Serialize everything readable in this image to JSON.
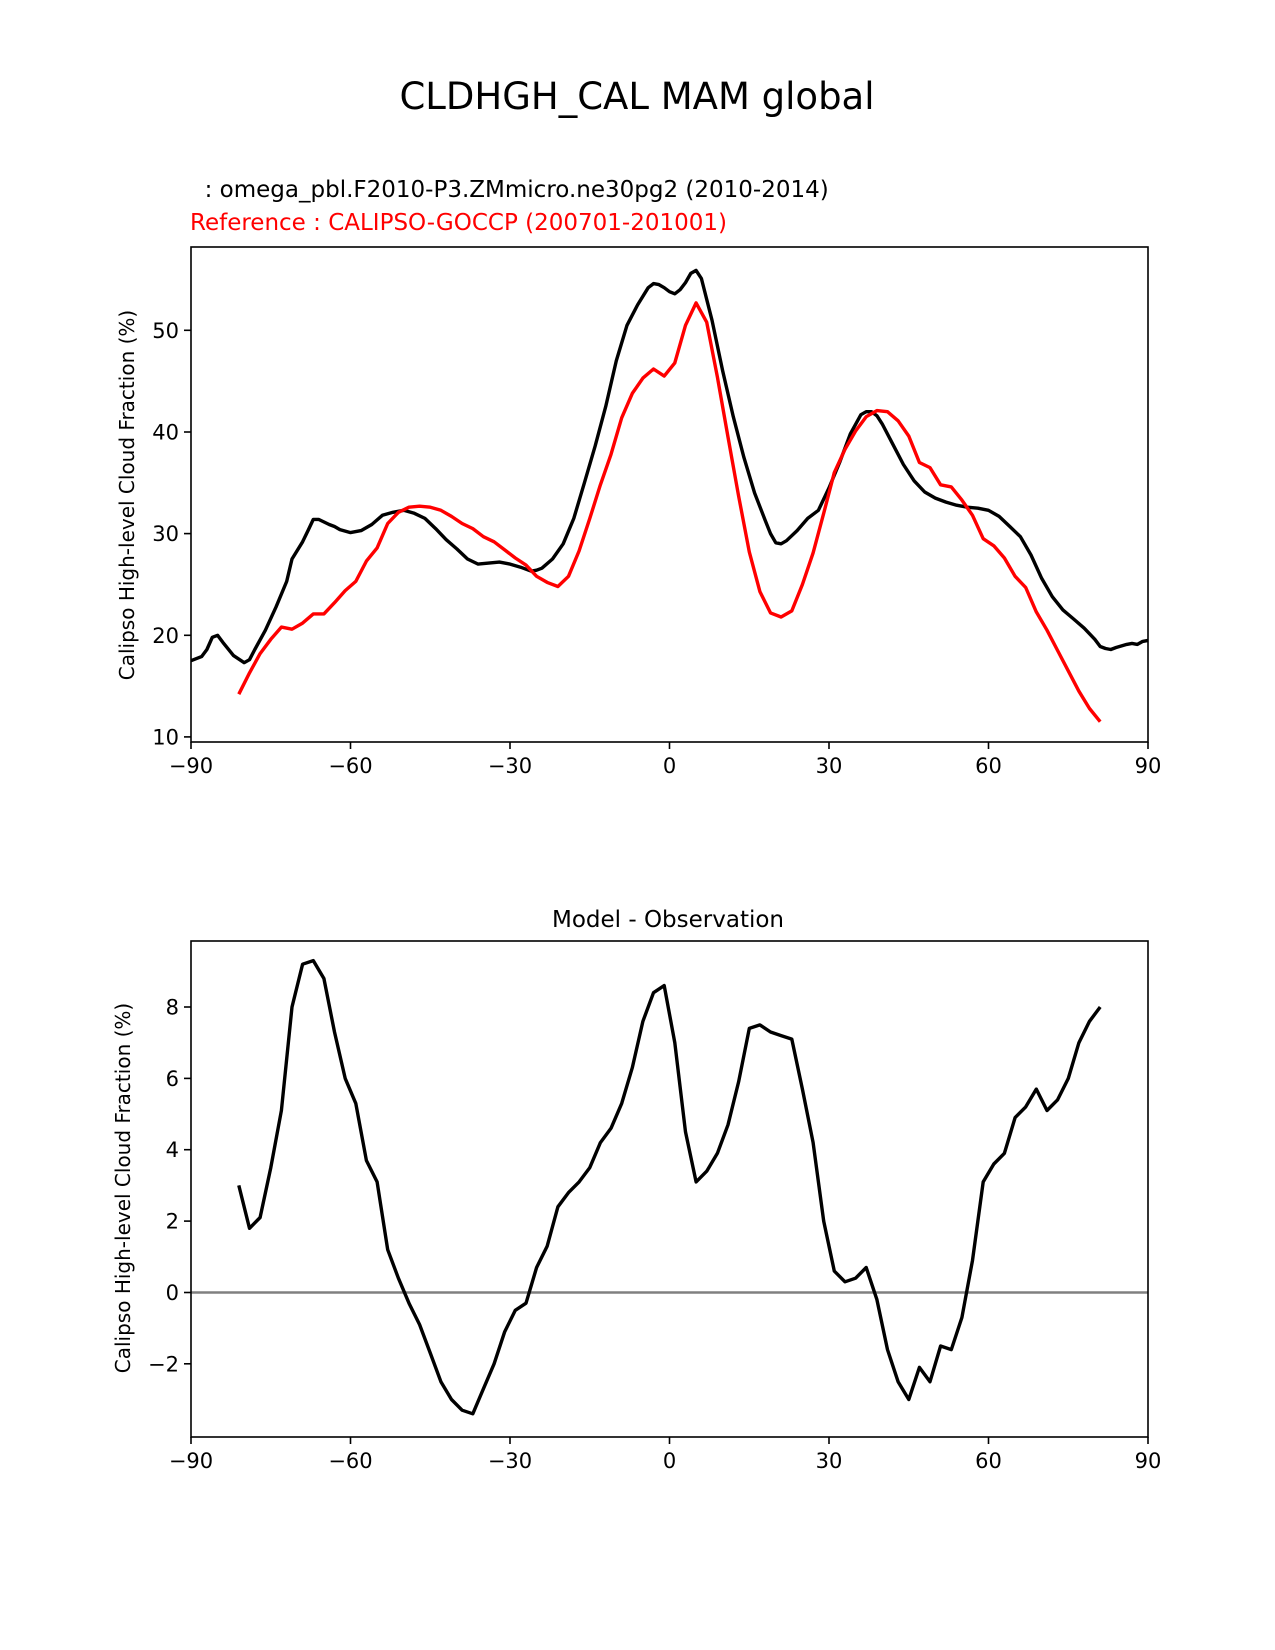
{
  "figure": {
    "title": "CLDHGH_CAL MAM global",
    "test_label": "  : omega_pbl.F2010-P3.ZMmicro.ne30pg2 (2010-2014)",
    "ref_label": "Reference : CALIPSO-GOCCP (200701-201001)",
    "colors": {
      "test": "#000000",
      "reference": "#ff0000",
      "zero_line": "#808080"
    }
  },
  "chart_data": [
    {
      "type": "line",
      "title": "",
      "xlabel": "",
      "ylabel": "Calipso High-level Cloud Fraction (%)",
      "xlim": [
        -90,
        90
      ],
      "ylim": [
        9.5,
        58.2
      ],
      "xticks": [
        -90,
        -60,
        -30,
        0,
        30,
        60,
        90
      ],
      "xtick_labels": [
        "−90",
        "−60",
        "−30",
        "0",
        "30",
        "60",
        "90"
      ],
      "yticks": [
        10,
        20,
        30,
        40,
        50
      ],
      "ytick_labels": [
        "10",
        "20",
        "30",
        "40",
        "50"
      ],
      "series": [
        {
          "name": "test",
          "color": "#000000",
          "x": [
            -90,
            -88,
            -87,
            -86,
            -85,
            -84,
            -82,
            -80,
            -79,
            -78,
            -76,
            -74,
            -72,
            -71,
            -69,
            -68,
            -67,
            -66,
            -64,
            -63,
            -62,
            -60,
            -58,
            -56,
            -54,
            -52,
            -50,
            -48,
            -46,
            -44,
            -42,
            -40,
            -38,
            -36,
            -34,
            -32,
            -30,
            -28,
            -26,
            -25,
            -24,
            -22,
            -20,
            -18,
            -16,
            -14,
            -12,
            -10,
            -8,
            -6,
            -4,
            -3,
            -2,
            -1,
            0,
            1,
            2,
            3,
            4,
            5,
            6,
            8,
            10,
            12,
            14,
            16,
            18,
            19,
            20,
            21,
            22,
            24,
            26,
            28,
            30,
            32,
            34,
            36,
            37,
            38,
            39,
            40,
            42,
            44,
            46,
            48,
            50,
            52,
            54,
            56,
            58,
            60,
            62,
            64,
            66,
            68,
            70,
            72,
            74,
            76,
            78,
            80,
            81,
            82,
            83,
            84,
            86,
            87,
            88,
            89,
            90
          ],
          "y": [
            17.5,
            17.9,
            18.6,
            19.8,
            20.0,
            19.3,
            18.0,
            17.3,
            17.6,
            18.6,
            20.5,
            22.8,
            25.3,
            27.5,
            29.2,
            30.3,
            31.4,
            31.4,
            30.9,
            30.7,
            30.4,
            30.1,
            30.3,
            30.9,
            31.8,
            32.1,
            32.3,
            32.0,
            31.5,
            30.5,
            29.4,
            28.5,
            27.5,
            27.0,
            27.1,
            27.2,
            27.0,
            26.7,
            26.3,
            26.4,
            26.6,
            27.5,
            29.0,
            31.5,
            35.0,
            38.6,
            42.5,
            47.0,
            50.5,
            52.5,
            54.2,
            54.6,
            54.5,
            54.2,
            53.8,
            53.6,
            54.0,
            54.7,
            55.6,
            55.9,
            55.1,
            51.0,
            46.0,
            41.5,
            37.5,
            34.0,
            31.3,
            30.0,
            29.1,
            29.0,
            29.3,
            30.3,
            31.5,
            32.3,
            34.5,
            37.0,
            39.8,
            41.7,
            42.0,
            42.0,
            41.6,
            40.8,
            38.8,
            36.8,
            35.2,
            34.1,
            33.5,
            33.1,
            32.8,
            32.6,
            32.5,
            32.3,
            31.7,
            30.7,
            29.7,
            27.9,
            25.6,
            23.8,
            22.5,
            21.6,
            20.7,
            19.6,
            18.9,
            18.7,
            18.6,
            18.8,
            19.1,
            19.2,
            19.1,
            19.4,
            19.5
          ]
        },
        {
          "name": "reference",
          "color": "#ff0000",
          "x": [
            -81,
            -79,
            -77,
            -75,
            -73,
            -71,
            -69,
            -67,
            -65,
            -63,
            -61,
            -59,
            -57,
            -55,
            -53,
            -51,
            -49,
            -47,
            -45,
            -43,
            -41,
            -39,
            -37,
            -35,
            -33,
            -31,
            -29,
            -27,
            -25,
            -23,
            -21,
            -19,
            -17,
            -15,
            -13,
            -11,
            -9,
            -7,
            -5,
            -3,
            -1,
            1,
            3,
            5,
            7,
            9,
            11,
            13,
            15,
            17,
            19,
            21,
            23,
            25,
            27,
            29,
            31,
            33,
            35,
            37,
            39,
            41,
            43,
            45,
            47,
            49,
            51,
            53,
            55,
            57,
            59,
            61,
            63,
            65,
            67,
            69,
            71,
            73,
            75,
            77,
            79,
            81
          ],
          "y": [
            14.2,
            16.3,
            18.2,
            19.6,
            20.8,
            20.6,
            21.2,
            22.1,
            22.1,
            23.2,
            24.4,
            25.3,
            27.3,
            28.6,
            31.0,
            32.1,
            32.6,
            32.7,
            32.6,
            32.3,
            31.7,
            31.0,
            30.5,
            29.7,
            29.2,
            28.4,
            27.6,
            26.9,
            25.8,
            25.2,
            24.8,
            25.8,
            28.3,
            31.5,
            34.8,
            37.8,
            41.4,
            43.8,
            45.3,
            46.2,
            45.5,
            46.8,
            50.5,
            52.7,
            50.8,
            45.4,
            39.5,
            33.7,
            28.2,
            24.3,
            22.2,
            21.8,
            22.4,
            25.0,
            28.1,
            32.0,
            36.0,
            38.3,
            40.1,
            41.5,
            42.1,
            42.0,
            41.1,
            39.6,
            37.0,
            36.5,
            34.8,
            34.6,
            33.3,
            31.8,
            29.5,
            28.8,
            27.6,
            25.8,
            24.7,
            22.3,
            20.5,
            18.5,
            16.5,
            14.5,
            12.8,
            11.5
          ]
        }
      ]
    },
    {
      "type": "line",
      "title": "Model - Observation",
      "xlabel": "",
      "ylabel": "Calipso High-level Cloud Fraction (%)",
      "xlim": [
        -90,
        90
      ],
      "ylim": [
        -4.05,
        9.85
      ],
      "xticks": [
        -90,
        -60,
        -30,
        0,
        30,
        60,
        90
      ],
      "xtick_labels": [
        "−90",
        "−60",
        "−30",
        "0",
        "30",
        "60",
        "90"
      ],
      "yticks": [
        -2,
        0,
        2,
        4,
        6,
        8
      ],
      "ytick_labels": [
        "−2",
        "0",
        "2",
        "4",
        "6",
        "8"
      ],
      "zero_line": 0,
      "series": [
        {
          "name": "model minus observation",
          "color": "#000000",
          "x": [
            -81,
            -79,
            -77,
            -75,
            -73,
            -71,
            -69,
            -67,
            -65,
            -63,
            -61,
            -59,
            -57,
            -55,
            -53,
            -51,
            -49,
            -47,
            -45,
            -43,
            -41,
            -39,
            -37,
            -35,
            -33,
            -31,
            -29,
            -27,
            -25,
            -23,
            -21,
            -19,
            -17,
            -15,
            -13,
            -11,
            -9,
            -7,
            -5,
            -3,
            -1,
            1,
            3,
            5,
            7,
            9,
            11,
            13,
            15,
            17,
            19,
            21,
            23,
            25,
            27,
            29,
            31,
            33,
            35,
            37,
            39,
            41,
            43,
            45,
            47,
            49,
            51,
            53,
            55,
            57,
            59,
            61,
            63,
            65,
            67,
            69,
            71,
            73,
            75,
            77,
            79,
            81
          ],
          "y": [
            3.0,
            1.8,
            2.1,
            3.5,
            5.1,
            8.0,
            9.2,
            9.3,
            8.8,
            7.3,
            6.0,
            5.3,
            3.7,
            3.1,
            1.2,
            0.4,
            -0.3,
            -0.9,
            -1.7,
            -2.5,
            -3.0,
            -3.3,
            -3.4,
            -2.7,
            -2.0,
            -1.1,
            -0.5,
            -0.3,
            0.7,
            1.3,
            2.4,
            2.8,
            3.1,
            3.5,
            4.2,
            4.6,
            5.3,
            6.3,
            7.6,
            8.4,
            8.6,
            7.0,
            4.5,
            3.1,
            3.4,
            3.9,
            4.7,
            5.9,
            7.4,
            7.5,
            7.3,
            7.2,
            7.1,
            5.7,
            4.2,
            2.0,
            0.6,
            0.3,
            0.4,
            0.7,
            -0.2,
            -1.6,
            -2.5,
            -3.0,
            -2.1,
            -2.5,
            -1.5,
            -1.6,
            -0.7,
            0.9,
            3.1,
            3.6,
            3.9,
            4.9,
            5.2,
            5.7,
            5.1,
            5.4,
            6.0,
            7.0,
            7.6,
            8.0
          ]
        }
      ]
    }
  ]
}
